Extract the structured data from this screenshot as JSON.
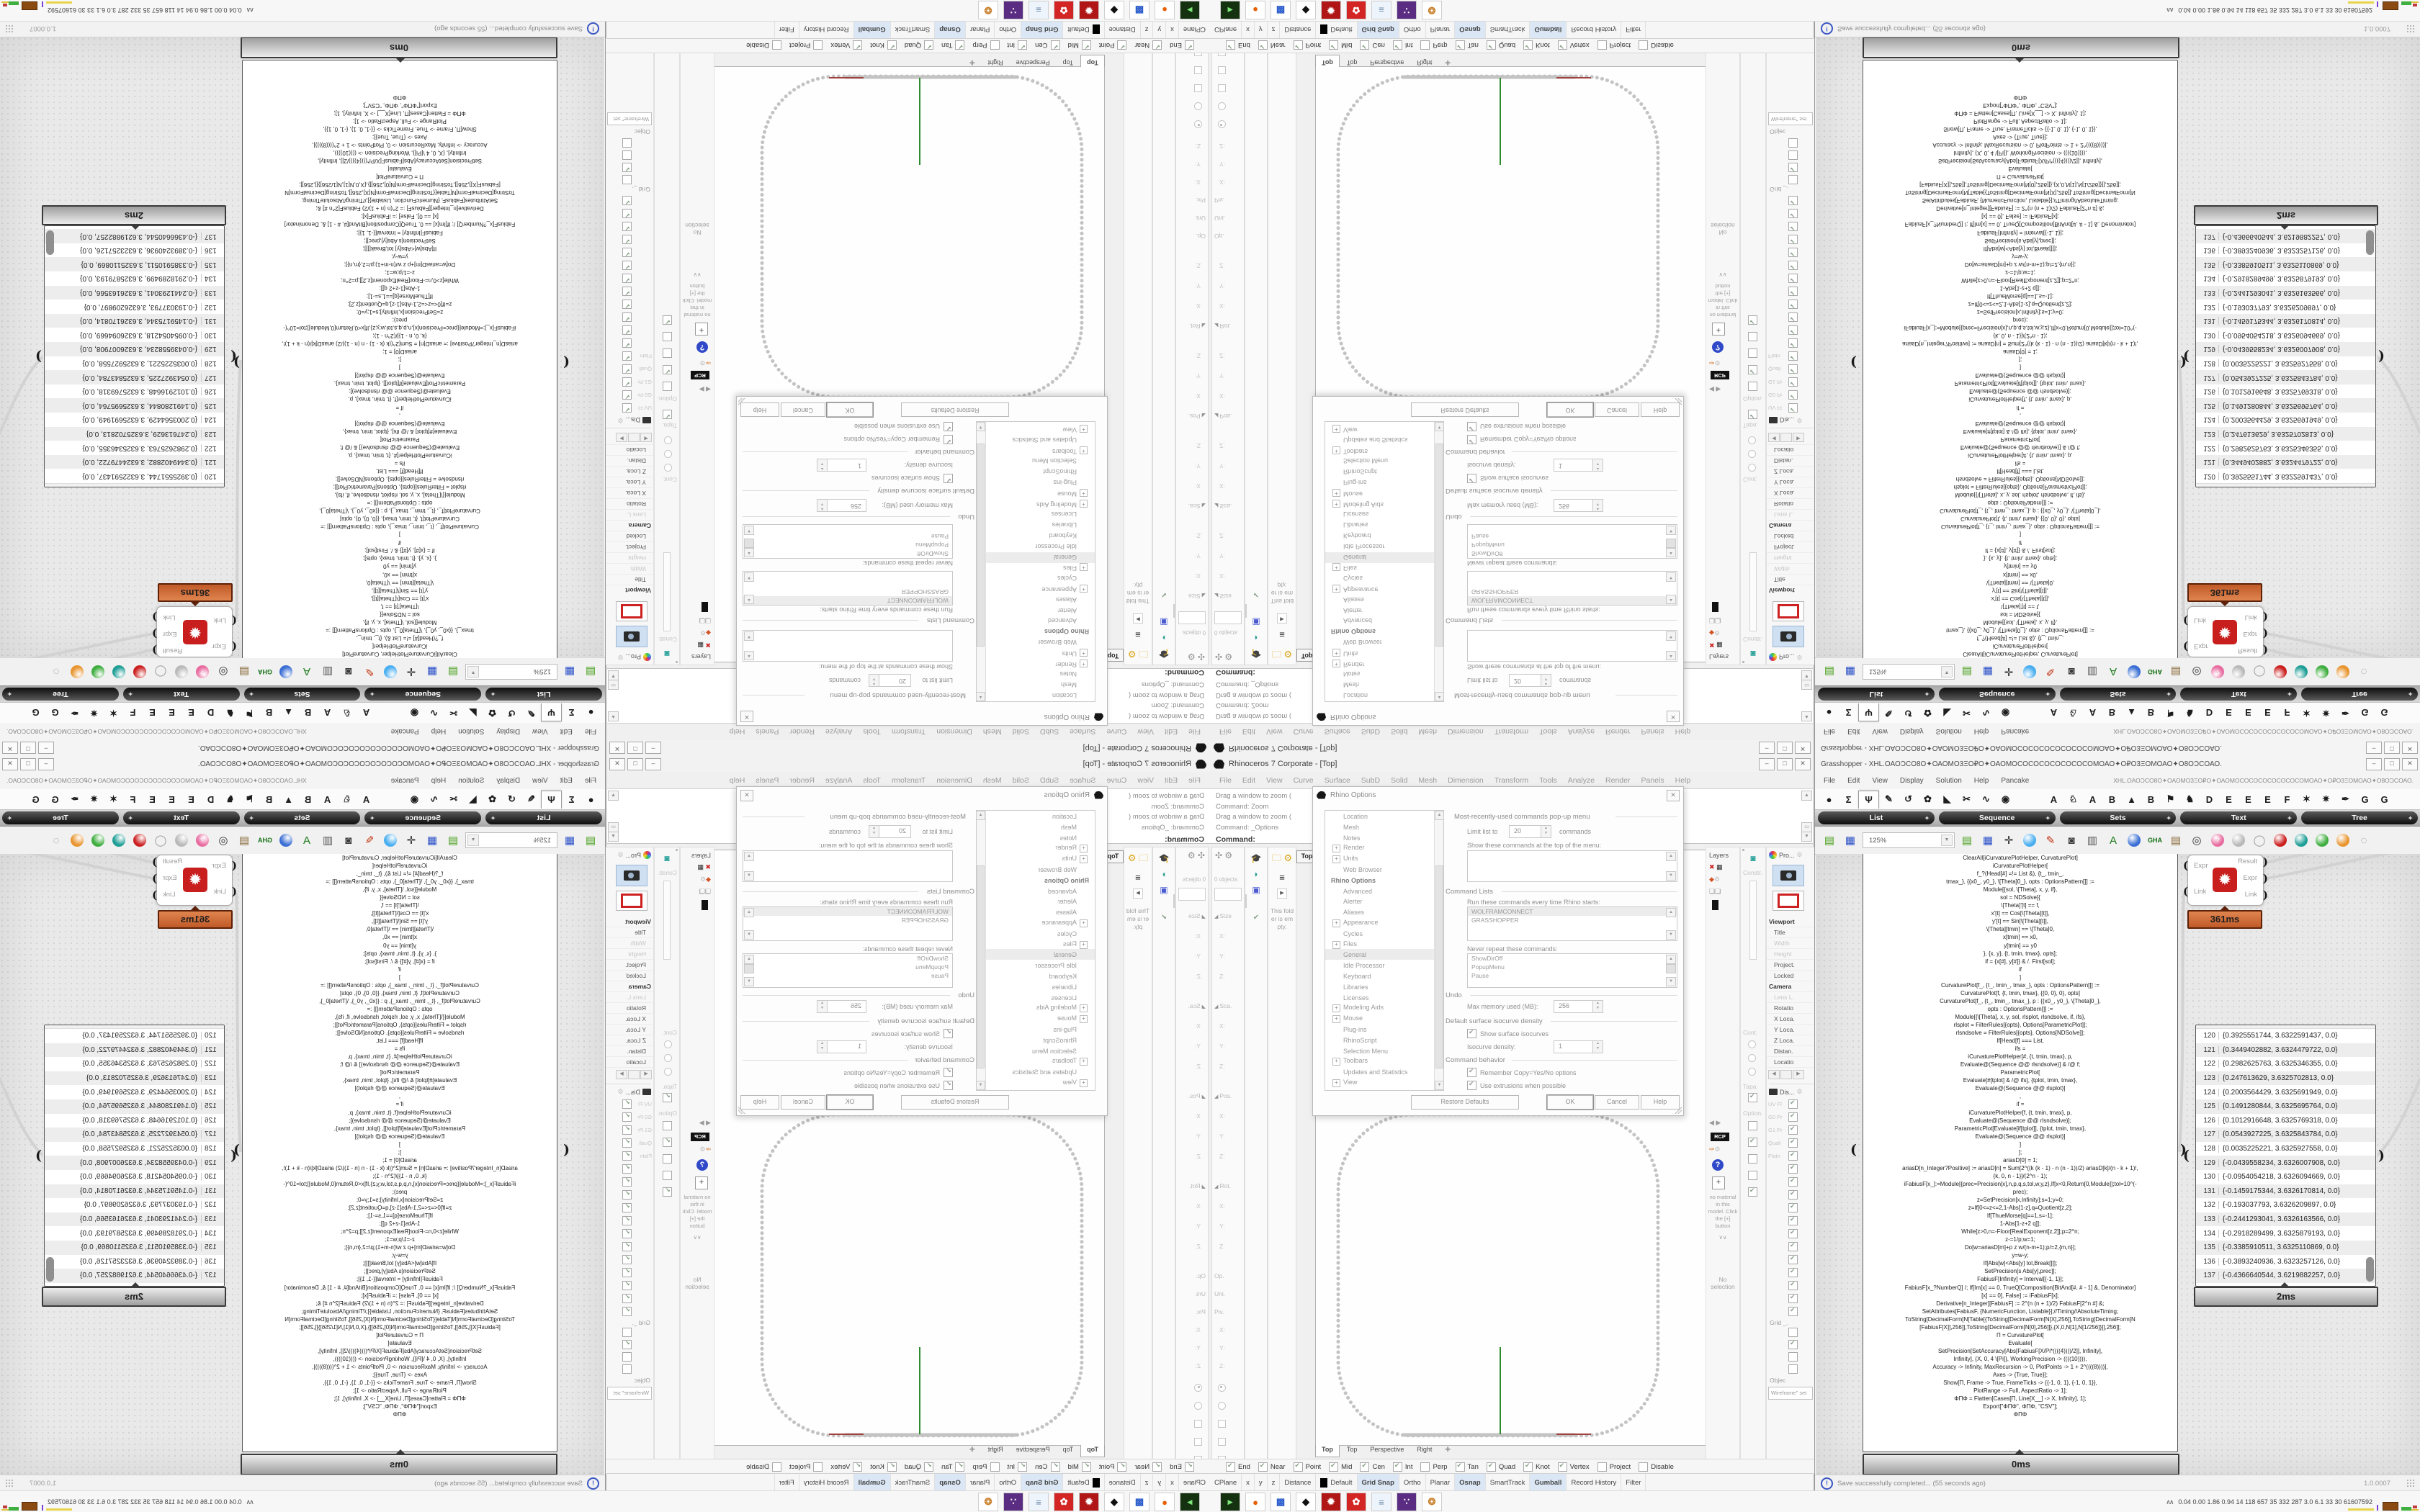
{
  "rhino": {
    "title": "Rhinoceros 7 Corporate - [Top]",
    "window_buttons": [
      "–",
      "□",
      "✕"
    ],
    "menu": [
      "File",
      "Edit",
      "View",
      "Curve",
      "Surface",
      "SubD",
      "Solid",
      "Mesh",
      "Dimension",
      "Transform",
      "Tools",
      "Analyze",
      "Render",
      "Panels",
      "Help"
    ],
    "command_history": [
      "Drag a window to zoom (",
      "Command: Zoom",
      "Drag a window to zoom (",
      "Command: _Options"
    ],
    "command_prompt": "Command:",
    "boxedit": {
      "objects": "0 objects",
      "groups": [
        {
          "t": "Size"
        },
        {
          "t": "Sca."
        },
        {
          "t": "Pos."
        },
        {
          "t": "Rot."
        }
      ],
      "axes": [
        "X:",
        "Y:",
        "Z:"
      ],
      "extras": [
        {
          "t": "Op."
        },
        {
          "t": "Uni."
        },
        {
          "t": "Piv."
        }
      ],
      "empty_folder": "This folder is empty."
    },
    "viewport": {
      "active_tab": "Top",
      "tabs": [
        {
          "t": "Top",
          "act": true
        },
        {
          "t": "Top"
        },
        {
          "t": "Perspective"
        },
        {
          "t": "Right"
        },
        {
          "t": "✛"
        }
      ]
    },
    "layers_panel": {
      "title": "Layers",
      "rcp": "RCP",
      "no_material": "no material in this model. Click the [+] button",
      "chevrons": "∨∨",
      "no_selection": "No selection"
    },
    "matcol": {
      "constraint": "Constr.",
      "cont": "Cont.",
      "tapa": "Tapa.",
      "option": "Option."
    },
    "props_panel": {
      "title": "Pro...",
      "items": [
        {
          "t": "Viewport",
          "k": "sec"
        },
        {
          "t": "Title"
        },
        {
          "t": "Width",
          "k": "dim"
        },
        {
          "t": "Height",
          "k": "dim"
        },
        {
          "t": "Project.",
          "k": ""
        },
        {
          "t": "Locked"
        },
        {
          "t": "Camera",
          "k": "sec"
        },
        {
          "t": "Lens L.",
          "k": "dim"
        },
        {
          "t": "Rotatio"
        },
        {
          "t": "X Loca."
        },
        {
          "t": "Y Loca."
        },
        {
          "t": "Z Loca."
        },
        {
          "t": "Distan."
        },
        {
          "t": "Locatio"
        }
      ],
      "display_title": "Dis...",
      "display_checks": [
        {
          "lab": "UV Fl",
          "on": true
        },
        {
          "lab": "G0 Pr",
          "on": true
        },
        {
          "lab": "G1 Pr",
          "on": true
        },
        {
          "lab": "Quali",
          "on": true
        },
        {
          "lab": "Flatn",
          "on": true
        },
        {
          "on": true
        },
        {
          "on": true
        },
        {
          "on": true
        },
        {
          "on": true
        },
        {
          "on": true
        },
        {
          "on": true
        },
        {
          "on": true
        },
        {
          "on": true
        },
        {
          "on": true
        },
        {
          "on": true
        },
        {
          "on": true
        },
        {
          "on": true
        }
      ],
      "grid_label": "Grid _.",
      "grid_checks": [
        {
          "on": false
        },
        {
          "on": true
        },
        {
          "on": false
        },
        {
          "on": false
        }
      ],
      "object_label": "Objec",
      "wireframe": "Wireframe\" set"
    },
    "osnap": [
      {
        "t": "End",
        "on": true
      },
      {
        "t": "Near",
        "on": true
      },
      {
        "t": "Point",
        "on": true
      },
      {
        "t": "Mid",
        "on": true
      },
      {
        "t": "Cen",
        "on": true
      },
      {
        "t": "Int",
        "on": true
      },
      {
        "t": "Perp",
        "on": false
      },
      {
        "t": "Tan",
        "on": true
      },
      {
        "t": "Quad",
        "on": true
      },
      {
        "t": "Knot",
        "on": true
      },
      {
        "t": "Vertex",
        "on": true
      },
      {
        "t": "Project",
        "on": false
      },
      {
        "t": "Disable",
        "on": false
      }
    ],
    "statusbar": [
      {
        "t": "CPlane"
      },
      {
        "t": "x"
      },
      {
        "t": "y"
      },
      {
        "t": "z"
      },
      {
        "t": "Distance"
      },
      {
        "t": "Default",
        "sw": true
      },
      {
        "t": "Grid Snap",
        "on": true
      },
      {
        "t": "Ortho"
      },
      {
        "t": "Planar"
      },
      {
        "t": "Osnap",
        "on": true
      },
      {
        "t": "SmartTrack"
      },
      {
        "t": "Gumball",
        "on": true
      },
      {
        "t": "Record History"
      },
      {
        "t": "Filter"
      }
    ]
  },
  "dialog": {
    "title": "Rhino Options",
    "close": "✕",
    "tree": [
      {
        "t": "Location"
      },
      {
        "t": "Mesh"
      },
      {
        "t": "Notes"
      },
      {
        "t": "Render",
        "pre": "+"
      },
      {
        "t": "Units",
        "pre": "+"
      },
      {
        "t": "Web Browser"
      },
      {
        "t": "Rhino Options",
        "b": true
      },
      {
        "t": "Advanced"
      },
      {
        "t": "Alerter"
      },
      {
        "t": "Aliases"
      },
      {
        "t": "Appearance",
        "pre": "+"
      },
      {
        "t": "Cycles"
      },
      {
        "t": "Files",
        "pre": "+"
      },
      {
        "t": "General",
        "sel": true
      },
      {
        "t": "Idle Processor"
      },
      {
        "t": "Keyboard"
      },
      {
        "t": "Libraries"
      },
      {
        "t": "Licenses"
      },
      {
        "t": "Modeling Aids",
        "pre": "+"
      },
      {
        "t": "Mouse",
        "pre": "+"
      },
      {
        "t": "Plug-ins"
      },
      {
        "t": "RhinoScript"
      },
      {
        "t": "Selection Menu"
      },
      {
        "t": "Toolbars",
        "pre": "+"
      },
      {
        "t": "Updates and Statistics"
      },
      {
        "t": "View",
        "pre": "+"
      }
    ],
    "mru": {
      "header": "Most-recently-used commands pop-up menu",
      "limit_label": "Limit list to",
      "limit_value": "20",
      "limit_suffix": "commands",
      "show_label": "Show these commands at the top of the menu:"
    },
    "cmdlists": {
      "header": "Command Lists",
      "run_label": "Run these commands every time Rhino starts:",
      "run_items": [
        {
          "t": "WOLFRAMCONNECT",
          "sel": true
        },
        {
          "t": "GRASSHOPPER"
        }
      ],
      "never_label": "Never repeat these commands:",
      "never_items": [
        {
          "t": "ShowDirOff"
        },
        {
          "t": "PopupMenu"
        },
        {
          "t": "Pause"
        }
      ]
    },
    "undo": {
      "header": "Undo",
      "label": "Max memory used (MB):",
      "value": "256"
    },
    "isocurve": {
      "header": "Default surface isocurve density",
      "cb": "Show surface isocurves",
      "density_label": "Isocurve density:",
      "density_value": "1"
    },
    "behavior": {
      "header": "Command behavior",
      "cb1": "Remember Copy=Yes/No options",
      "cb2": "Use extrusions when possible"
    },
    "buttons": {
      "restore": "Restore Defaults",
      "ok": "OK",
      "cancel": "Cancel",
      "help": "Help"
    }
  },
  "gh": {
    "title": "Grasshopper - XHL.ΟΑΟϽϹΟ8Ο✦ΟΑΟΜΟ3ΞΟ₽Ο✦ΟΑΟΜΟϹΟϹΟϹΟϹΟϹΟϹΟϹΟΜΟΑΟ✦Ο₽Ο3ΞΟΜΟΑΟ✦Ο8ΟϽϹΟΑΟ.",
    "doc": "XHL.ΟΑΟϽϹΟ8Ο✦ΟΑΟΜΟ3ΞΟ₽Ο✦ΟΑΟΜΟϹΟϹΟϹΟϹΟϹΟϹΟϹΟΜΟΑΟ✦Ο₽Ο3ΞΟΜΟΑΟ✦Ο8ΟϽϹΟΑΟ.",
    "menu": [
      "File",
      "Edit",
      "View",
      "Display",
      "Solution",
      "Help",
      "Pancake"
    ],
    "cat_icons": [
      {
        "g": "●"
      },
      {
        "g": "Σ"
      },
      {
        "g": "Ψ",
        "sel": true
      },
      {
        "g": "✎"
      },
      {
        "g": "↺"
      },
      {
        "g": "✿"
      },
      {
        "g": "◣"
      },
      {
        "g": "✂"
      },
      {
        "g": "∿"
      },
      {
        "g": "◉"
      },
      {
        "g": "A",
        "gap": true
      },
      {
        "g": "♘"
      },
      {
        "g": "A"
      },
      {
        "g": "B"
      },
      {
        "g": "▲"
      },
      {
        "g": "B"
      },
      {
        "g": "⚑"
      },
      {
        "g": "♞"
      },
      {
        "g": "D"
      },
      {
        "g": "E"
      },
      {
        "g": "E"
      },
      {
        "g": "E"
      },
      {
        "g": "F"
      },
      {
        "g": "✶"
      },
      {
        "g": "✷"
      },
      {
        "g": "✒"
      },
      {
        "g": "G"
      },
      {
        "g": "G"
      }
    ],
    "subtabs": [
      {
        "t": "List"
      },
      {
        "t": "Sequence"
      },
      {
        "t": "Sets"
      },
      {
        "t": "Text"
      },
      {
        "t": "Tree"
      }
    ],
    "zoom": "125%",
    "toolbar_icons": [
      {
        "g": "▤",
        "c": "#4aa11e"
      },
      {
        "g": "▦",
        "c": "#2b50c8"
      },
      {
        "g": "✛",
        "c": "#222",
        "dd": true
      },
      {
        "ball": "#49aef0",
        "dd": true
      },
      {
        "g": "✎",
        "c": "#c33310"
      },
      {
        "g": "◙",
        "c": "#3a3a3a"
      },
      {
        "g": "▥",
        "c": "#555"
      },
      {
        "g": "A",
        "c": "#1b7a1b"
      },
      {
        "ball": "#3b6fd4"
      },
      {
        "g": "GHA",
        "c": "#157015",
        "txt": true
      },
      {
        "g": "▤",
        "c": "#8a6a3a"
      },
      {
        "g": "◎",
        "c": "#333"
      },
      {
        "g": "?",
        "c": "#fff",
        "ball": "#e86ca0"
      },
      {
        "ball": "#b9b9b9"
      },
      {
        "g": "◯",
        "c": "#9a9a9a"
      },
      {
        "ball": "#cc2020"
      },
      {
        "ball": "#1f9e96"
      },
      {
        "ball": "#3fae3f"
      },
      {
        "ball": "#e8952f"
      },
      {
        "g": "◌",
        "c": "#888",
        "dd": true
      }
    ],
    "component": {
      "inputs": [
        {
          "t": "Expr"
        },
        {
          "t": "Link"
        }
      ],
      "outputs": [
        {
          "t": "Result"
        },
        {
          "t": "Expr"
        },
        {
          "t": "Link"
        }
      ],
      "time": "361ms"
    },
    "code_panel": {
      "time": "0ms",
      "lines": [
        {
          "t": "ClearAll[iCurvaturePlotHelper, CurvaturePlot]"
        },
        {
          "t": "iCurvaturePlotHelper["
        },
        {
          "t": "f_?(Head[#] =!= List &), {t_, tmin_,"
        },
        {
          "t": "tmax_}, {{x0_, y0_}, \\[Theta]0_}, opts : OptionsPattern[]] :="
        },
        {
          "t": "Module[{sol, \\[Theta], x, y, if},"
        },
        {
          "t": "sol = NDSolve[{"
        },
        {
          "t": "\\[Theta]'[t] == f,"
        },
        {
          "t": "x'[t] == Cos[\\[Theta][t]],"
        },
        {
          "t": "y'[t] == Sin[\\[Theta][t]],"
        },
        {
          "t": "\\[Theta][tmin] == \\[Theta]0,"
        },
        {
          "t": "x[tmin] == x0,"
        },
        {
          "t": "y[tmin] == y0"
        },
        {
          "t": "}, {x, y}, {t, tmin, tmax}, opts];"
        },
        {
          "t": "if = {x[#], y[#]} & /. First[sol];"
        },
        {
          "t": "if"
        },
        {
          "t": "]"
        },
        {
          "t": " "
        },
        {
          "t": "CurvaturePlot[f_, {t_, tmin_, tmax_}, opts : OptionsPattern[]] :="
        },
        {
          "t": "CurvaturePlot[f, {t, tmin, tmax}, {{0, 0}, 0}, opts]"
        },
        {
          "t": "CurvaturePlot[f_, {t_, tmin_, tmax_}, p : {{x0_, y0_}, \\[Theta]0_},"
        },
        {
          "t": "opts : OptionsPattern[]] :="
        },
        {
          "t": "Module[{\\[Theta], x, y, sol, rlsplot, rlsndsolve, if, ifs},"
        },
        {
          "t": "rlsplot = FilterRules[{opts}, Options[ParametricPlot]];"
        },
        {
          "t": "rlsndsolve = FilterRules[{opts}, Options[NDSolve]];"
        },
        {
          "t": "If[Head[f] === List,"
        },
        {
          "t": "ifs ="
        },
        {
          "t": "iCurvaturePlotHelper[#, {t, tmin, tmax}, p,"
        },
        {
          "t": "Evaluate@(Sequence @@ rlsndsolve)] & /@ f;"
        },
        {
          "t": "ParametricPlot["
        },
        {
          "t": "Evaluate[#[tplot] & /@ ifs], {tplot, tmin, tmax},"
        },
        {
          "t": "Evaluate@(Sequence @@ rlsplot)]"
        },
        {
          "t": ","
        },
        {
          "t": "if ="
        },
        {
          "t": "iCurvaturePlotHelper[f, {t, tmin, tmax}, p,"
        },
        {
          "t": "Evaluate@(Sequence @@ rlsndsolve)];"
        },
        {
          "t": "ParametricPlot[Evaluate[if[tplot]], {tplot, tmin, tmax},"
        },
        {
          "t": "Evaluate@(Sequence @@ rlsplot)]"
        },
        {
          "t": "]"
        },
        {
          "t": "];"
        },
        {
          "t": " "
        },
        {
          "t": "ariasD[0] = 1;"
        },
        {
          "t": "ariasD[n_Integer?Positive] := ariasD[n] = Sum[2^((k (k - 1) - n (n - 1))/2) ariasD[k]/(n - k + 1)!,"
        },
        {
          "t": "{k, 0, n - 1}]/(2^n - 1);"
        },
        {
          "t": "iFabiusF[x_]:=Module[{prec=Precision[x],n,p,q,s,tol,w,y,z},If[x<0,Return[0,Module]];tol=10^(-"
        },
        {
          "t": "prec);"
        },
        {
          "t": "z=SetPrecision[x,Infinity];s=1;y=0;"
        },
        {
          "t": "z=If[0<=z<=2,1-Abs[1-z],q=Quotient[z,2];"
        },
        {
          "t": "If[ThueMorse[q]==1,s=-1];"
        },
        {
          "t": "1-Abs[1-z+2 q]];"
        },
        {
          "t": "While[z>0,n=-Floor[RealExponent[z,2]];p=2^n;"
        },
        {
          "t": "z-=1/p;w=1;"
        },
        {
          "t": "Do[w=ariasD[m]+p z w/(n-m+1);p/=2,{m,n}];"
        },
        {
          "t": "y=w-y;"
        },
        {
          "t": "If[Abs[w]<Abs[y] tol,Break[]]];"
        },
        {
          "t": "SetPrecision[s Abs[y],prec]];"
        },
        {
          "t": "FabiusF[Infinity] = Interval[{-1, 1}];"
        },
        {
          "t": "FabiusF[x_?NumberQ] /; If[Im[x] == 0, TrueQ[Composition[BitAnd[#, # - 1] &, Denominator]"
        },
        {
          "t": "[x] == 0], False] := iFabiusF[x];"
        },
        {
          "t": "Derivative[n_Integer][FabiusF] := 2^(n (n + 1)/2) FabiusF[2^n #] &;"
        },
        {
          "t": "SetAttributes[FabiusF, {NumericFunction, Listable}];//Timing//AbsoluteTiming;"
        },
        {
          "t": " "
        },
        {
          "t": "ToString[DecimalForm[N[Table[{ToString[DecimalForm[N[X],256]],ToString[DecimalForm[N"
        },
        {
          "t": "[FabiusF[X]],256]],ToString[DecimalForm[N[0],256]]},{X,0,N[1],N[1/256]}]],256]];"
        },
        {
          "t": " "
        },
        {
          "t": "Π = CurvaturePlot["
        },
        {
          "t": "Evaluate["
        },
        {
          "t": "SetPrecision[SetAccuracy[Abs[FabiusF[X/Pi*((((4))))/2]], Infinity],"
        },
        {
          "t": "Infinity], {X, 0, 4 \\[Pi]}, WorkingPrecision -> ((((10)))),"
        },
        {
          "t": "Accuracy -> Infinity, MaxRecursion -> 0, PlotPoints -> 1 + 2^((((8))))],"
        },
        {
          "t": "Axes -> {True, True}];"
        },
        {
          "t": "Show[Π, Frame -> True, FrameTicks -> {{-1, 0, 1}, {-1, 0, 1}},"
        },
        {
          "t": "PlotRange -> Full, AspectRatio -> 1];"
        },
        {
          "t": "ΦΠΦ = Flatten[Cases[Π, Line[X__] -> X, Infinity], 1];"
        },
        {
          "t": "Export[\"ΦΠΦ\", ΦΠΦ, \"CSV\"];"
        },
        {
          "t": "ΦΠΦ"
        }
      ]
    },
    "data_panel": {
      "time": "2ms",
      "rows": [
        {
          "i": "120",
          "v": "{0.3925551744, 3.6322591437, 0.0}"
        },
        {
          "i": "121",
          "v": "{0.3449402882, 3.6324479722, 0.0}"
        },
        {
          "i": "122",
          "v": "{0.2982625763, 3.6325346355, 0.0}"
        },
        {
          "i": "123",
          "v": "{0.247613629, 3.6325702813, 0.0}"
        },
        {
          "i": "124",
          "v": "{0.2003564429, 3.6325691949, 0.0}"
        },
        {
          "i": "125",
          "v": "{0.1491280844, 3.6325695764, 0.0}"
        },
        {
          "i": "126",
          "v": "{0.1012916648, 3.6325769318, 0.0}"
        },
        {
          "i": "127",
          "v": "{0.0543927225, 3.6325843784, 0.0}"
        },
        {
          "i": "128",
          "v": "{0.0035225221, 3.6325927558, 0.0}"
        },
        {
          "i": "129",
          "v": "{-0.0439558234, 3.6326007908, 0.0}"
        },
        {
          "i": "130",
          "v": "{-0.0954054218, 3.6326094669, 0.0}"
        },
        {
          "i": "131",
          "v": "{-0.1459175344, 3.6326170814, 0.0}"
        },
        {
          "i": "132",
          "v": "{-0.193037793, 3.6326209897, 0.0}"
        },
        {
          "i": "133",
          "v": "{-0.2441293041, 3.6326163566, 0.0}"
        },
        {
          "i": "134",
          "v": "{-0.2918289499, 3.6325879193, 0.0}"
        },
        {
          "i": "135",
          "v": "{-0.3385910511, 3.6325110869, 0.0}"
        },
        {
          "i": "136",
          "v": "{-0.3893240936, 3.6323257126, 0.0}"
        },
        {
          "i": "137",
          "v": "{-0.4366640544, 3.6219882257, 0.0}"
        }
      ]
    },
    "status": "Save successfully completed... (55 seconds ago)",
    "version": "1.0.0007"
  },
  "taskbar": {
    "stats": "0.04 0.00 1.86 0.94    14    118   657    35    332   287    3.0    6.1    33    30   61607592",
    "apps": [
      {
        "g": "▸",
        "c": "#7ee87e",
        "bg": "#14320f"
      },
      {
        "g": "●",
        "c": "#e66000",
        "bg": "#ffffff"
      },
      {
        "g": "▩",
        "c": "#2b5ccc",
        "bg": "#ffffff"
      },
      {
        "g": "◆",
        "c": "#111111",
        "bg": "#ffffff"
      },
      {
        "g": "✹",
        "c": "#ffffff",
        "bg": "#b01616"
      },
      {
        "g": "✿",
        "c": "#ffffff",
        "bg": "#d42525"
      },
      {
        "g": "≡",
        "c": "#6a88a8",
        "bg": "#eef4fb"
      },
      {
        "g": "∵",
        "c": "#ffffff",
        "bg": "#5a2d82"
      },
      {
        "g": "❂",
        "c": "#c77f2a",
        "bg": "#ffffff"
      }
    ]
  }
}
